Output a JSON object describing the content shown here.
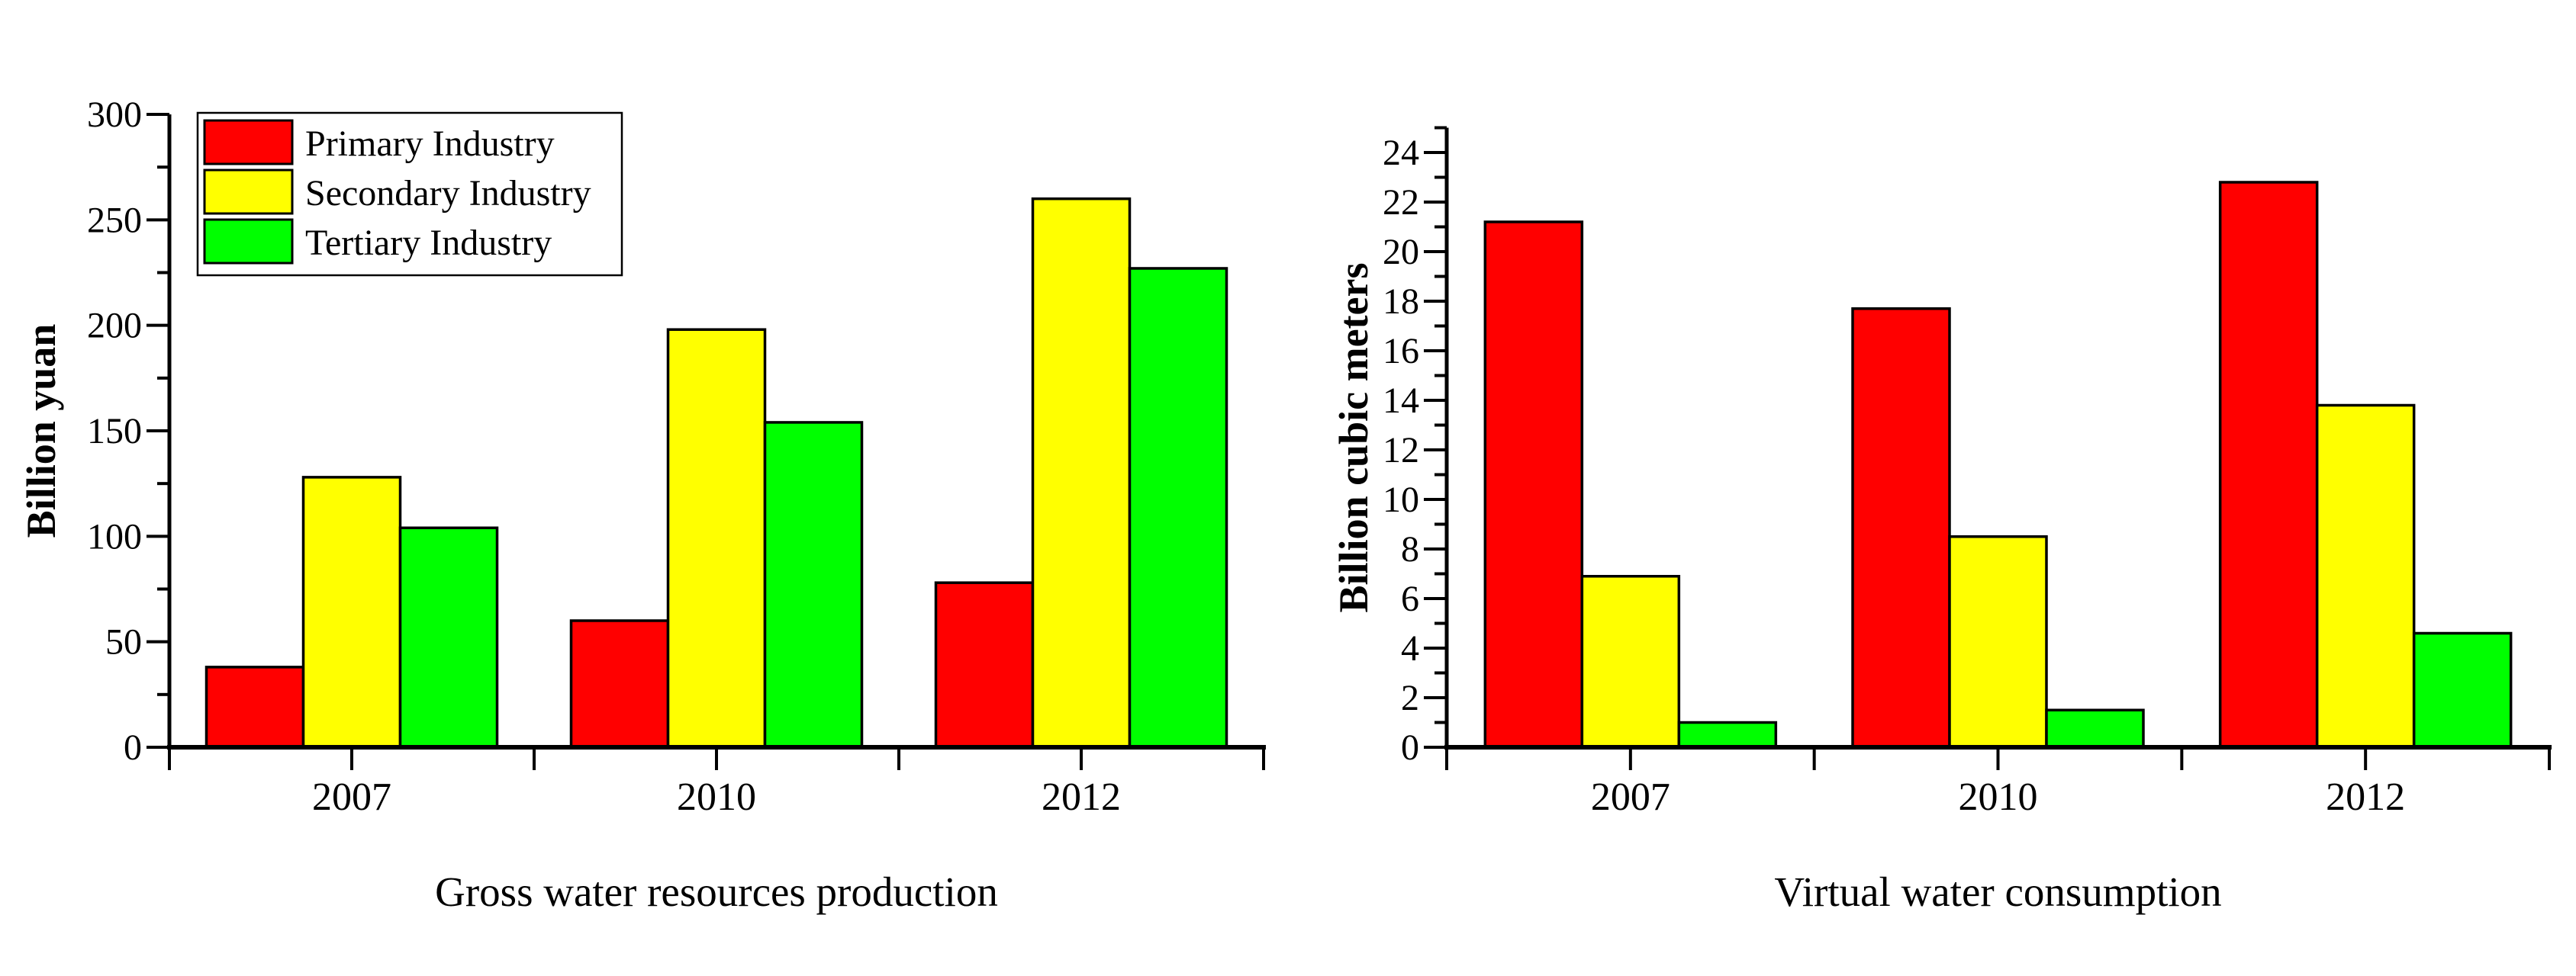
{
  "figure": {
    "background_color": "#FFFFFF",
    "text_color": "#000000",
    "axis_color": "#000000"
  },
  "chart_data": [
    {
      "type": "bar",
      "title": "Gross water resources production",
      "title_position": "bottom",
      "ylabel": "Billion yuan",
      "xlabel": "",
      "categories": [
        "2007",
        "2010",
        "2012"
      ],
      "series": [
        {
          "name": "Primary Industry",
          "color": "#FF0000",
          "values": [
            38,
            60,
            78
          ]
        },
        {
          "name": "Secondary Industry",
          "color": "#FFFF00",
          "values": [
            128,
            198,
            260
          ]
        },
        {
          "name": "Tertiary Industry",
          "color": "#00FF00",
          "values": [
            104,
            154,
            227
          ]
        }
      ],
      "ylim": [
        0,
        300
      ],
      "ytick_major": 50,
      "ytick_minor": 25,
      "bar_outline_color": "#000000",
      "legend": true,
      "legend_position": "top-left",
      "grid": false
    },
    {
      "type": "bar",
      "title": "Virtual water consumption",
      "title_position": "bottom",
      "ylabel": "Billion cubic meters",
      "xlabel": "",
      "categories": [
        "2007",
        "2010",
        "2012"
      ],
      "series": [
        {
          "name": "Primary Industry",
          "color": "#FF0000",
          "values": [
            21.2,
            17.7,
            22.8
          ]
        },
        {
          "name": "Secondary Industry",
          "color": "#FFFF00",
          "values": [
            6.9,
            8.5,
            13.8
          ]
        },
        {
          "name": "Tertiary Industry",
          "color": "#00FF00",
          "values": [
            1.0,
            1.5,
            4.6
          ]
        }
      ],
      "ylim": [
        0,
        25
      ],
      "ytick_major": 2,
      "ytick_minor": 1,
      "bar_outline_color": "#000000",
      "legend": false,
      "grid": false
    }
  ]
}
